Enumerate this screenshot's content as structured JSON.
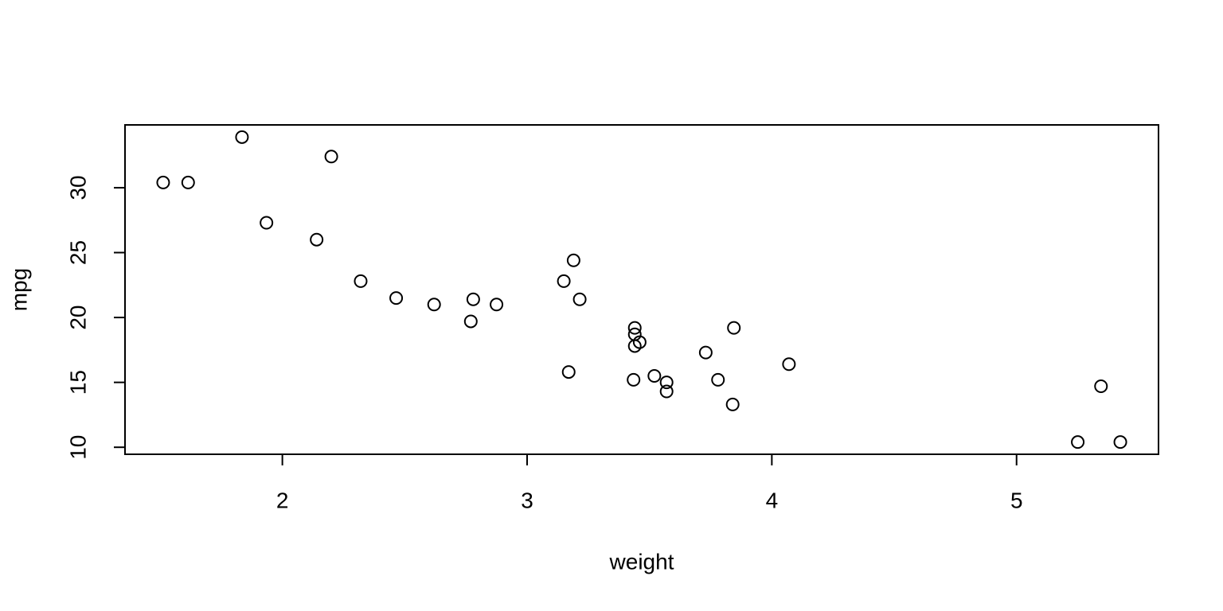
{
  "chart_data": {
    "type": "scatter",
    "x_label": "weight",
    "y_label": "mpg",
    "x": [
      2.62,
      2.875,
      2.32,
      3.215,
      3.44,
      3.46,
      3.57,
      3.19,
      3.15,
      3.44,
      3.44,
      4.07,
      3.73,
      3.78,
      5.25,
      5.424,
      5.345,
      2.2,
      1.615,
      1.835,
      2.465,
      3.52,
      3.435,
      3.84,
      3.845,
      1.935,
      2.14,
      1.513,
      3.17,
      2.77,
      3.57,
      2.78
    ],
    "y": [
      21.0,
      21.0,
      22.8,
      21.4,
      18.7,
      18.1,
      14.3,
      24.4,
      22.8,
      19.2,
      17.8,
      16.4,
      17.3,
      15.2,
      10.4,
      10.4,
      14.7,
      32.4,
      30.4,
      33.9,
      21.5,
      15.5,
      15.2,
      13.3,
      19.2,
      27.3,
      26.0,
      30.4,
      15.8,
      19.7,
      15.0,
      21.4
    ],
    "xlim": [
      1.357,
      5.58
    ],
    "ylim": [
      9.46,
      34.84
    ],
    "xticks": [
      2,
      3,
      4,
      5
    ],
    "yticks": [
      10,
      15,
      20,
      25,
      30
    ],
    "marker_color": "#000000"
  }
}
